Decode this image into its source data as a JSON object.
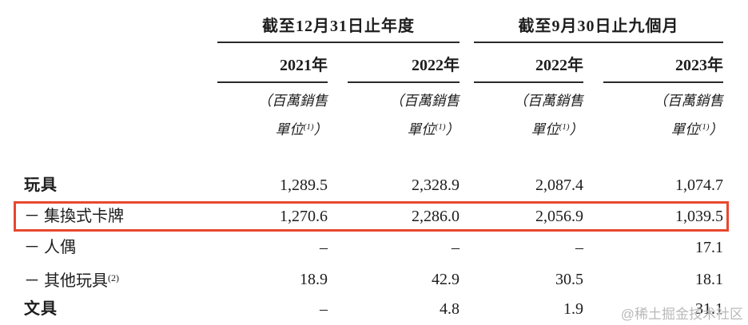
{
  "table": {
    "col_groups": [
      {
        "title": "截至12月31日止年度",
        "years": [
          "2021年",
          "2022年"
        ]
      },
      {
        "title": "截至9月30日止九個月",
        "years": [
          "2022年",
          "2023年"
        ]
      }
    ],
    "unit_note": {
      "line1": "（百萬銷售",
      "line2_pre": "單位",
      "sup": "(1)",
      "close": "）"
    },
    "rows": [
      {
        "label": "玩具",
        "values": [
          "1,289.5",
          "2,328.9",
          "2,087.4",
          "1,074.7"
        ]
      },
      {
        "label": "－ 集換式卡牌",
        "values": [
          "1,270.6",
          "2,286.0",
          "2,056.9",
          "1,039.5"
        ]
      },
      {
        "label": "－ 人偶",
        "values": [
          "–",
          "–",
          "–",
          "17.1"
        ]
      },
      {
        "label": "－ 其他玩具",
        "sup": "(2)",
        "values": [
          "18.9",
          "42.9",
          "30.5",
          "18.1"
        ]
      },
      {
        "label": "文具",
        "values": [
          "–",
          "4.8",
          "1.9",
          "31.1"
        ]
      }
    ]
  },
  "highlight": {
    "row_index": 1,
    "color": "#e8472e"
  },
  "watermark": {
    "text": "@稀土掘金技术社区",
    "color": "#b9b9b9"
  },
  "colors": {
    "text": "#1d1d1d",
    "rule": "#2a2a2a",
    "background": "#ffffff"
  }
}
